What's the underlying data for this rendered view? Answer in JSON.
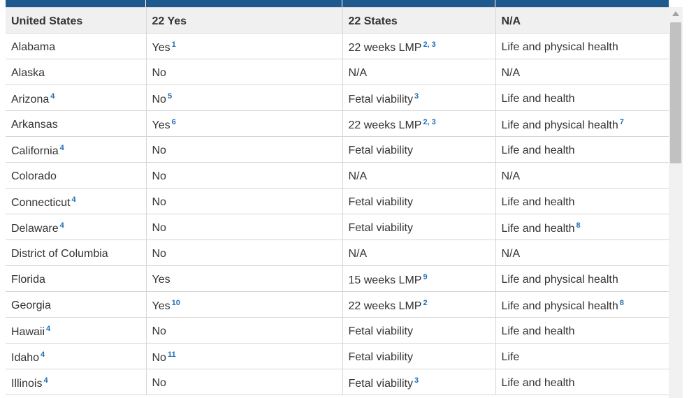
{
  "table": {
    "header": [
      "United States",
      "22 Yes",
      "22 States",
      "N/A"
    ],
    "rows": [
      {
        "state": "Alabama",
        "state_note": "",
        "ban": "Yes",
        "ban_note": "1",
        "limit": "22 weeks LMP",
        "limit_note": "2, 3",
        "exception": "Life and physical health",
        "exception_note": ""
      },
      {
        "state": "Alaska",
        "state_note": "",
        "ban": "No",
        "ban_note": "",
        "limit": "N/A",
        "limit_note": "",
        "exception": "N/A",
        "exception_note": ""
      },
      {
        "state": "Arizona",
        "state_note": "4",
        "ban": "No",
        "ban_note": "5",
        "limit": "Fetal viability",
        "limit_note": "3",
        "exception": "Life and health",
        "exception_note": ""
      },
      {
        "state": "Arkansas",
        "state_note": "",
        "ban": "Yes",
        "ban_note": "6",
        "limit": "22 weeks LMP",
        "limit_note": "2, 3",
        "exception": "Life and physical health",
        "exception_note": "7"
      },
      {
        "state": "California",
        "state_note": "4",
        "ban": "No",
        "ban_note": "",
        "limit": "Fetal viability",
        "limit_note": "",
        "exception": "Life and health",
        "exception_note": ""
      },
      {
        "state": "Colorado",
        "state_note": "",
        "ban": "No",
        "ban_note": "",
        "limit": "N/A",
        "limit_note": "",
        "exception": "N/A",
        "exception_note": ""
      },
      {
        "state": "Connecticut",
        "state_note": "4",
        "ban": "No",
        "ban_note": "",
        "limit": "Fetal viability",
        "limit_note": "",
        "exception": "Life and health",
        "exception_note": ""
      },
      {
        "state": "Delaware",
        "state_note": "4",
        "ban": "No",
        "ban_note": "",
        "limit": "Fetal viability",
        "limit_note": "",
        "exception": "Life and health",
        "exception_note": "8"
      },
      {
        "state": "District of Columbia",
        "state_note": "",
        "ban": "No",
        "ban_note": "",
        "limit": "N/A",
        "limit_note": "",
        "exception": "N/A",
        "exception_note": ""
      },
      {
        "state": "Florida",
        "state_note": "",
        "ban": "Yes",
        "ban_note": "",
        "limit": "15 weeks LMP",
        "limit_note": "9",
        "exception": "Life and physical health",
        "exception_note": ""
      },
      {
        "state": "Georgia",
        "state_note": "",
        "ban": "Yes",
        "ban_note": "10",
        "limit": "22 weeks LMP",
        "limit_note": "2",
        "exception": "Life and physical health",
        "exception_note": "8"
      },
      {
        "state": "Hawaii",
        "state_note": "4",
        "ban": "No",
        "ban_note": "",
        "limit": "Fetal viability",
        "limit_note": "",
        "exception": "Life and health",
        "exception_note": ""
      },
      {
        "state": "Idaho",
        "state_note": "4",
        "ban": "No",
        "ban_note": "11",
        "limit": "Fetal viability",
        "limit_note": "",
        "exception": "Life",
        "exception_note": ""
      },
      {
        "state": "Illinois",
        "state_note": "4",
        "ban": "No",
        "ban_note": "",
        "limit": "Fetal viability",
        "limit_note": "3",
        "exception": "Life and health",
        "exception_note": ""
      }
    ]
  },
  "colors": {
    "header_bar": "#1e5a8e",
    "header_bg": "#f0f0f0",
    "footnote": "#1e6fb8"
  },
  "scrollbar": {
    "icon": "scroll-up-arrow-icon"
  }
}
